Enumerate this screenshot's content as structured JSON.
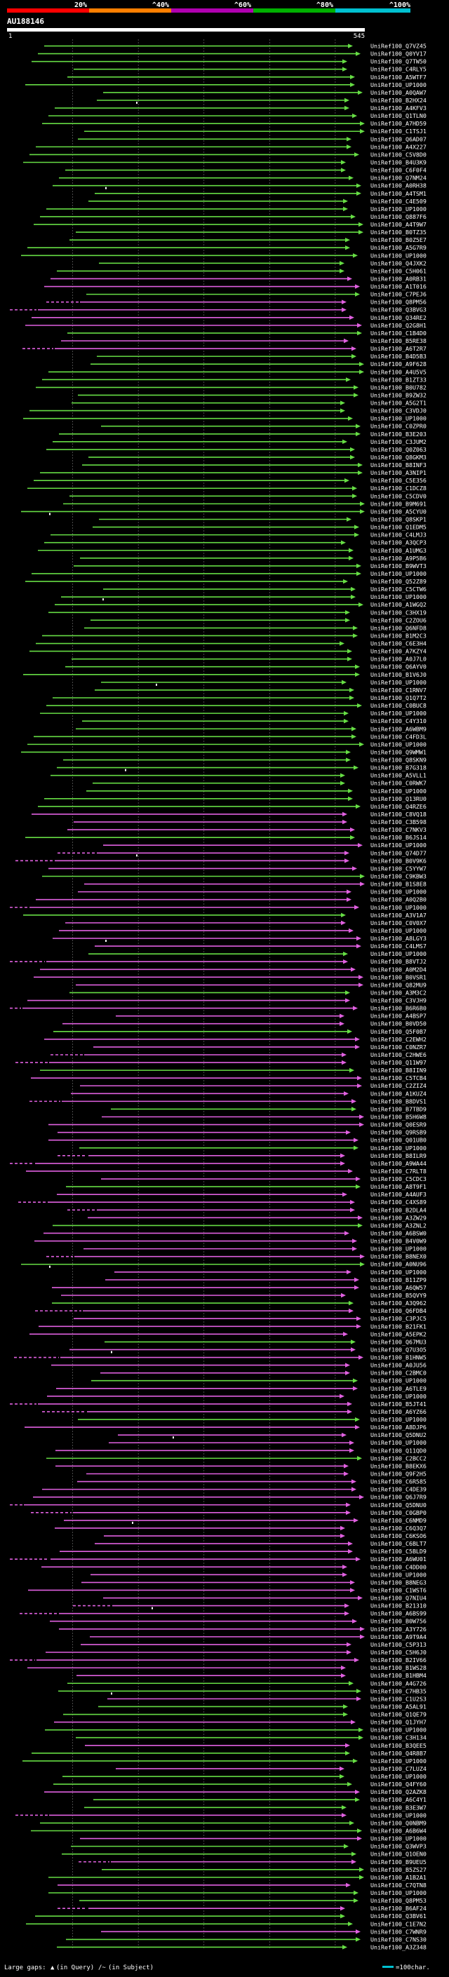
{
  "chart_data": {
    "type": "alignment-overview",
    "title": "",
    "query_id": "AU188146",
    "query_range": [
      1,
      545
    ],
    "scale_labels": [
      "20%",
      "^40%",
      "^60%",
      "^80%",
      "^100%"
    ],
    "identity_bins": [
      {
        "label": "20%",
        "color": "#ff0000"
      },
      {
        "label": "40%",
        "color": "#ff7f00"
      },
      {
        "label": "60%",
        "color": "#b000b0"
      },
      {
        "label": "80%",
        "color": "#00b000"
      },
      {
        "label": "100%",
        "color": "#00c0d0"
      }
    ],
    "colors": {
      "high": "#66dd44",
      "mid": "#e060e0"
    },
    "footer": {
      "gaps_label": "Large gaps:",
      "query_gap_marker": "▲",
      "query_gap_text": "(in Query)",
      "subject_gap_marker": "/~",
      "subject_gap_text": "(in Subject)",
      "scale_text": "=100char."
    },
    "hit_ids": [
      "Q7VZ45",
      "Q0YV17",
      "Q7TW50",
      "C4RLY5",
      "A5WTF7",
      "UP1000",
      "A0QAW7",
      "B2HX24",
      "A4KFV3",
      "Q1TLN0",
      "A7HD59",
      "C1TSJ1",
      "Q6AD07",
      "A4X227",
      "C5V8D0",
      "B4U3K9",
      "C6F0F4",
      "Q7NM24",
      "A0RH38",
      "A4TSM1",
      "C4E509",
      "UP1000",
      "Q887F6",
      "A4T9W7",
      "B0TZ35",
      "B0Z5E7",
      "A5G7R9",
      "UP1000",
      "Q4JXK2",
      "C5H061",
      "A0RB31",
      "A1T016",
      "C7PEJ6",
      "Q8PM56",
      "Q3BVG3",
      "Q34RE2",
      "Q2G8H1",
      "C1B4D0",
      "B5RE38",
      "A6T2R7",
      "B4D5B3",
      "A9F628",
      "A4U5V5",
      "B1ZT33",
      "B0U782",
      "B9ZW32",
      "A5G2T1",
      "C3VDJ0",
      "UP1000",
      "C0ZPR0",
      "B3E203",
      "C3JUM2",
      "Q0Z063",
      "Q8GKM3",
      "B8INF3",
      "A3NIP1",
      "C5E356",
      "C1DCZ8",
      "C5CDV0",
      "B9M691",
      "A5CYU0",
      "Q8SKP1",
      "Q1EDM5",
      "C4LMJ3",
      "A3QCP3",
      "A1UMG3",
      "A9P5B6",
      "B9WVT3",
      "UP1000",
      "Q52Z89",
      "C5CTW6",
      "UP1000",
      "A1WGQ2",
      "C3HX19",
      "C2ZOU6",
      "Q6NFD8",
      "B1M2C3",
      "C6E3H4",
      "A7KZY4",
      "A0J7L0",
      "Q6AYV0",
      "B1V6J0",
      "UP1000",
      "C1RNV7",
      "Q1Q7T2",
      "C0BUC8",
      "UP1000",
      "C4Y310",
      "A6WBM9",
      "C4FD3L",
      "UP1000",
      "Q9WMW1",
      "Q8SKN9",
      "B7G318",
      "A5VLL1",
      "C0RWK7",
      "UP1000",
      "Q13RU0",
      "Q4RZE6",
      "C8VQ18",
      "C3B598",
      "C7NKV3",
      "B6JS14",
      "UP1000",
      "Q74D77",
      "B0V9K6",
      "C5YYW7",
      "C9KBW3",
      "B1S8E8",
      "UP1000",
      "A0Q2B0",
      "UP1000",
      "A3V1A7",
      "C0V0X7",
      "UP1000",
      "A8LGY3",
      "C4LMS7",
      "UP1000",
      "B8VTJ2",
      "A0M2D4",
      "B0VSR1",
      "Q82MU9",
      "A3M3C2",
      "C3VJH9",
      "B6R6B0",
      "A4BSP7",
      "B0VD50",
      "Q5F0B7",
      "C2EWH2",
      "C0NZR7",
      "C2HWE6",
      "Q11W97",
      "B8IIN9",
      "C5TCB4",
      "C2ZIZ4",
      "A1KUZ4",
      "B8DVS1",
      "B7TBD9",
      "B5H6W8",
      "Q0ESR9",
      "Q9RSB9",
      "Q01UB0",
      "UP1000",
      "B8ILR9",
      "A9WA44",
      "C7RLT8",
      "C5CDC3",
      "A8T9F1",
      "A4AUF3",
      "C4XS89",
      "B2DLA4",
      "A3ZW29",
      "A3ZNL2",
      "A6BSW0",
      "B4V0W9",
      "UP1000",
      "B8NEX0",
      "A0NU96",
      "UP1000",
      "B11ZP9",
      "A6QW57",
      "B5QVY9",
      "A3Q962",
      "Q6FDB4",
      "C3PJC5",
      "B21FK1",
      "A5EPK2",
      "Q67MU3",
      "Q7U3O5",
      "B1HNW5",
      "A0JU56",
      "C2BMC0",
      "UP1000",
      "A6TLE9",
      "UP1000",
      "B5JT41",
      "A6YZ66",
      "UP1000",
      "A8DJP6",
      "Q5DNU2",
      "UP1000",
      "Q11QD0",
      "C2BCC2",
      "B8EKX6",
      "Q9F2H5",
      "C6R585",
      "C4DE39",
      "Q6J7R9",
      "Q5DNU0",
      "C0GBP0",
      "C6NMD9",
      "C6Q3Q7",
      "C6KSO6",
      "C6BLT7",
      "C5BLD9",
      "A6WU01",
      "C4DD00",
      "UP1000",
      "B8NEG3",
      "C1WST6",
      "Q7NIU4",
      "B21310",
      "A6BS99",
      "B0W756",
      "A3Y726",
      "A9T9A4",
      "C5P313",
      "C5H6J0",
      "B2IV66",
      "B1WS28",
      "B1HBM4",
      "A4G726",
      "C7HB35",
      "C1U2S3",
      "A5AL91",
      "Q1QE79",
      "Q1JYH7",
      "UP1000",
      "C3H134",
      "B3QEE5",
      "Q4R8B7",
      "UP1000",
      "C7LUZ4",
      "UP1000",
      "Q4FY60",
      "Q2AZK8",
      "A6C4Y1",
      "B3E3W7",
      "UP1000",
      "Q0NBM9",
      "A6B6W4",
      "UP1000",
      "Q3WVP3",
      "Q1OEN0",
      "B9UEU5",
      "B5ZS27",
      "A1B2A1",
      "C7QTN8",
      "UP1000",
      "Q8PM53",
      "B6AF24",
      "Q3BV61",
      "C1E7N2",
      "C7WNR9",
      "C7NS30",
      "A3Z348"
    ]
  }
}
